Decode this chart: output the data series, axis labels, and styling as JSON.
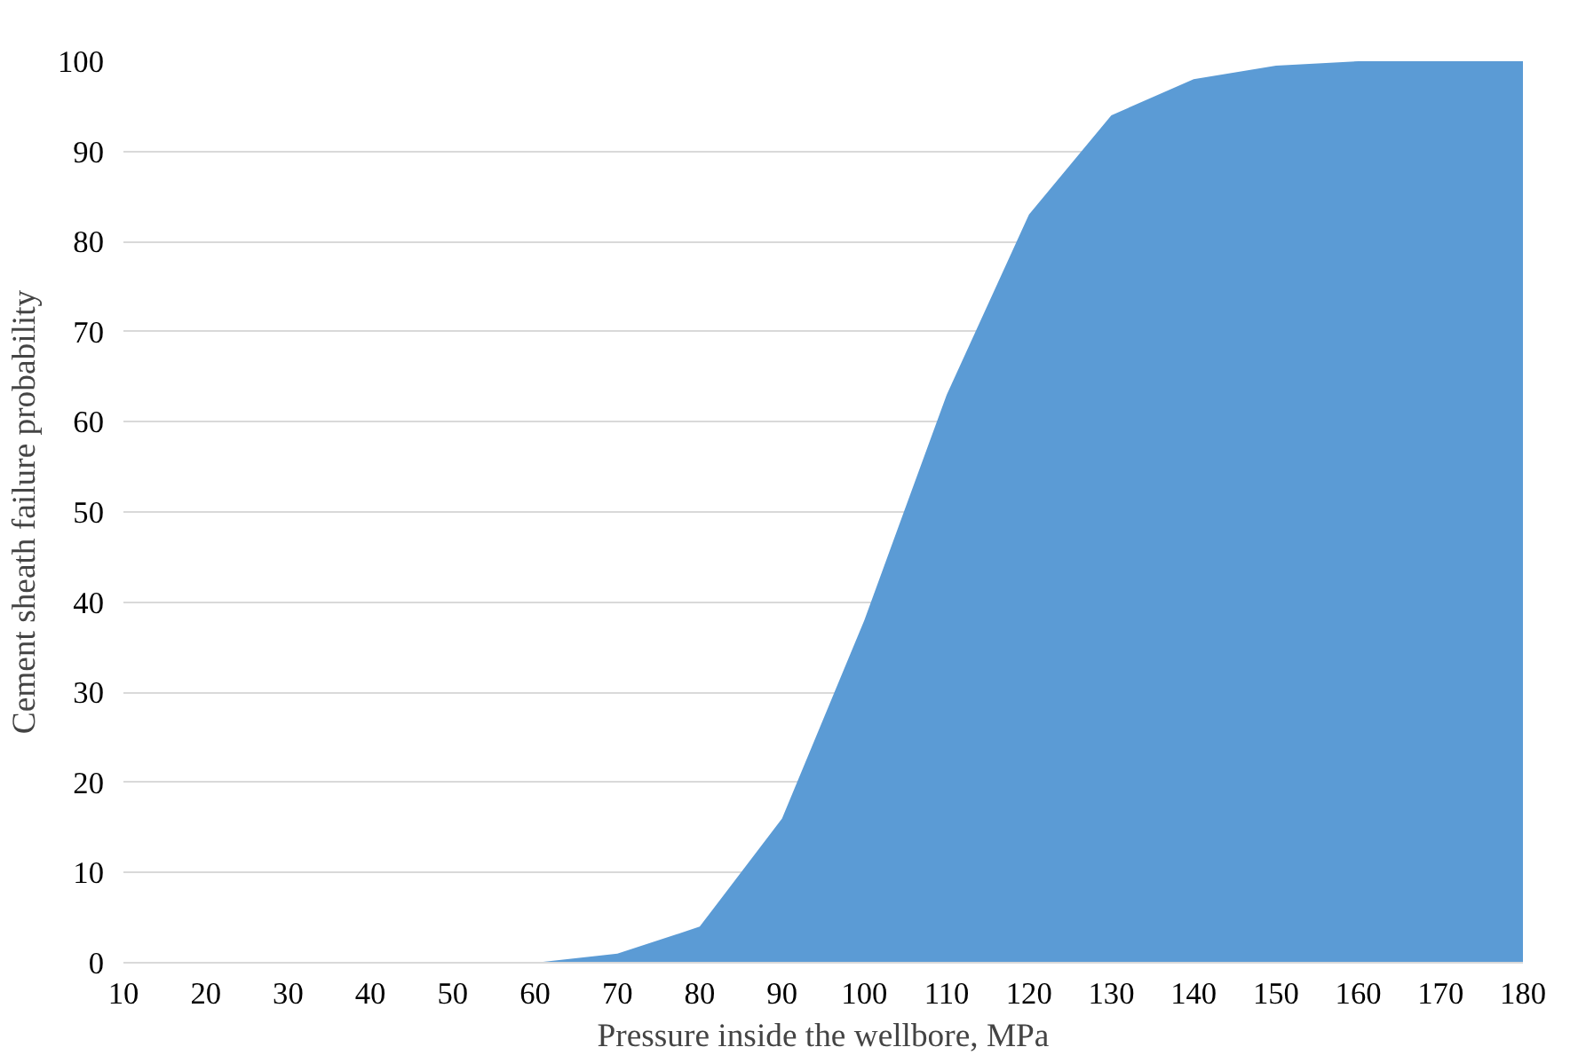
{
  "chart_data": {
    "type": "area",
    "xlabel": "Pressure inside the wellbore, MPa",
    "ylabel": "Cement sheath failure probability",
    "x": [
      10,
      20,
      30,
      40,
      50,
      60,
      70,
      80,
      90,
      100,
      110,
      120,
      130,
      140,
      150,
      160,
      170,
      180
    ],
    "series": [
      {
        "color": "#5b9bd5",
        "values": [
          0,
          0,
          0,
          0,
          0,
          0,
          1,
          4,
          16,
          38,
          63,
          83,
          94,
          98,
          99.5,
          100,
          100,
          100
        ]
      }
    ],
    "xlim": [
      10,
      180
    ],
    "xticks": [
      10,
      20,
      30,
      40,
      50,
      60,
      70,
      80,
      90,
      100,
      110,
      120,
      130,
      140,
      150,
      160,
      170,
      180
    ],
    "ylim": [
      0,
      100
    ],
    "yticks": [
      0,
      10,
      20,
      30,
      40,
      50,
      60,
      70,
      80,
      90,
      100
    ],
    "grid": "y"
  }
}
